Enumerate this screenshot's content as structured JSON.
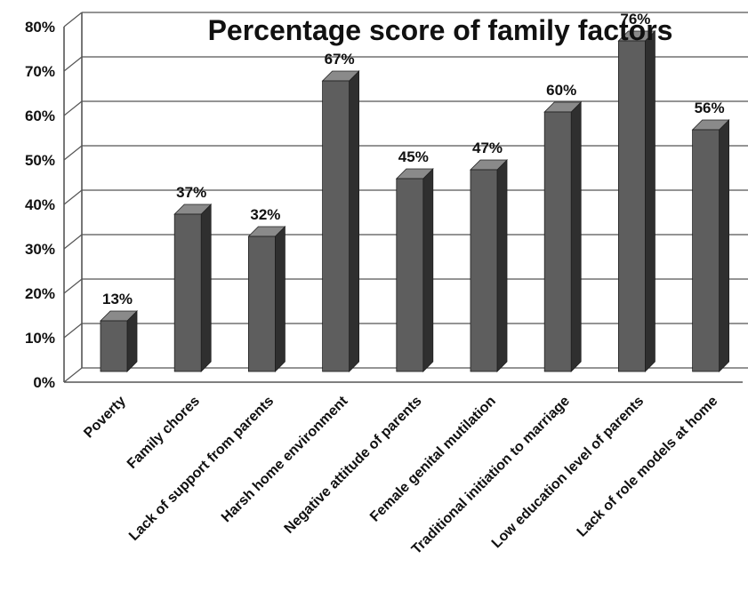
{
  "chart_data": {
    "type": "bar",
    "title": "Percentage score of family factors",
    "xlabel": "",
    "ylabel": "",
    "ylim": [
      0,
      80
    ],
    "yticks": [
      "0%",
      "10%",
      "20%",
      "30%",
      "40%",
      "50%",
      "60%",
      "70%",
      "80%"
    ],
    "categories": [
      "Poverty",
      "Family chores",
      "Lack of support from parents",
      "Harsh home environment",
      "Negative attitude of parents",
      "Female genital mutilation",
      "Traditional initiation to marriage",
      "Low education level of parents",
      "Lack of role models at home"
    ],
    "values": [
      13,
      37,
      32,
      67,
      45,
      47,
      60,
      76,
      56
    ],
    "data_labels": [
      "13%",
      "37%",
      "32%",
      "67%",
      "45%",
      "47%",
      "60%",
      "76%",
      "56%"
    ],
    "grid": true,
    "legend": "none",
    "style": "3d-column",
    "colors": {
      "bar_front": "#5e5e5e",
      "bar_side": "#2f2f2f",
      "bar_top": "#8a8a8a",
      "grid": "#555555",
      "text": "#111111"
    }
  }
}
